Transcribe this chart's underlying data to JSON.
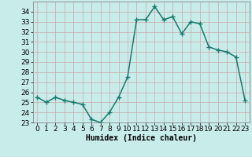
{
  "x": [
    0,
    1,
    2,
    3,
    4,
    5,
    6,
    7,
    8,
    9,
    10,
    11,
    12,
    13,
    14,
    15,
    16,
    17,
    18,
    19,
    20,
    21,
    22,
    23
  ],
  "y": [
    25.5,
    25.0,
    25.5,
    25.2,
    25.0,
    24.8,
    23.3,
    23.0,
    24.0,
    25.5,
    27.5,
    33.2,
    33.2,
    34.5,
    33.2,
    33.5,
    31.8,
    33.0,
    32.8,
    30.5,
    30.2,
    30.0,
    29.5,
    25.2
  ],
  "line_color": "#1a7a6e",
  "marker_color": "#1a7a6e",
  "bg_color": "#c8ecea",
  "grid_color": "#c0d8d4",
  "xlabel": "Humidex (Indice chaleur)",
  "ylim": [
    23,
    35
  ],
  "xlim": [
    -0.5,
    23.5
  ],
  "yticks": [
    23,
    24,
    25,
    26,
    27,
    28,
    29,
    30,
    31,
    32,
    33,
    34
  ],
  "xticks": [
    0,
    1,
    2,
    3,
    4,
    5,
    6,
    7,
    8,
    9,
    10,
    11,
    12,
    13,
    14,
    15,
    16,
    17,
    18,
    19,
    20,
    21,
    22,
    23
  ],
  "xlabel_fontsize": 7,
  "tick_fontsize": 6.5,
  "linewidth": 1.1,
  "markersize": 2.5
}
